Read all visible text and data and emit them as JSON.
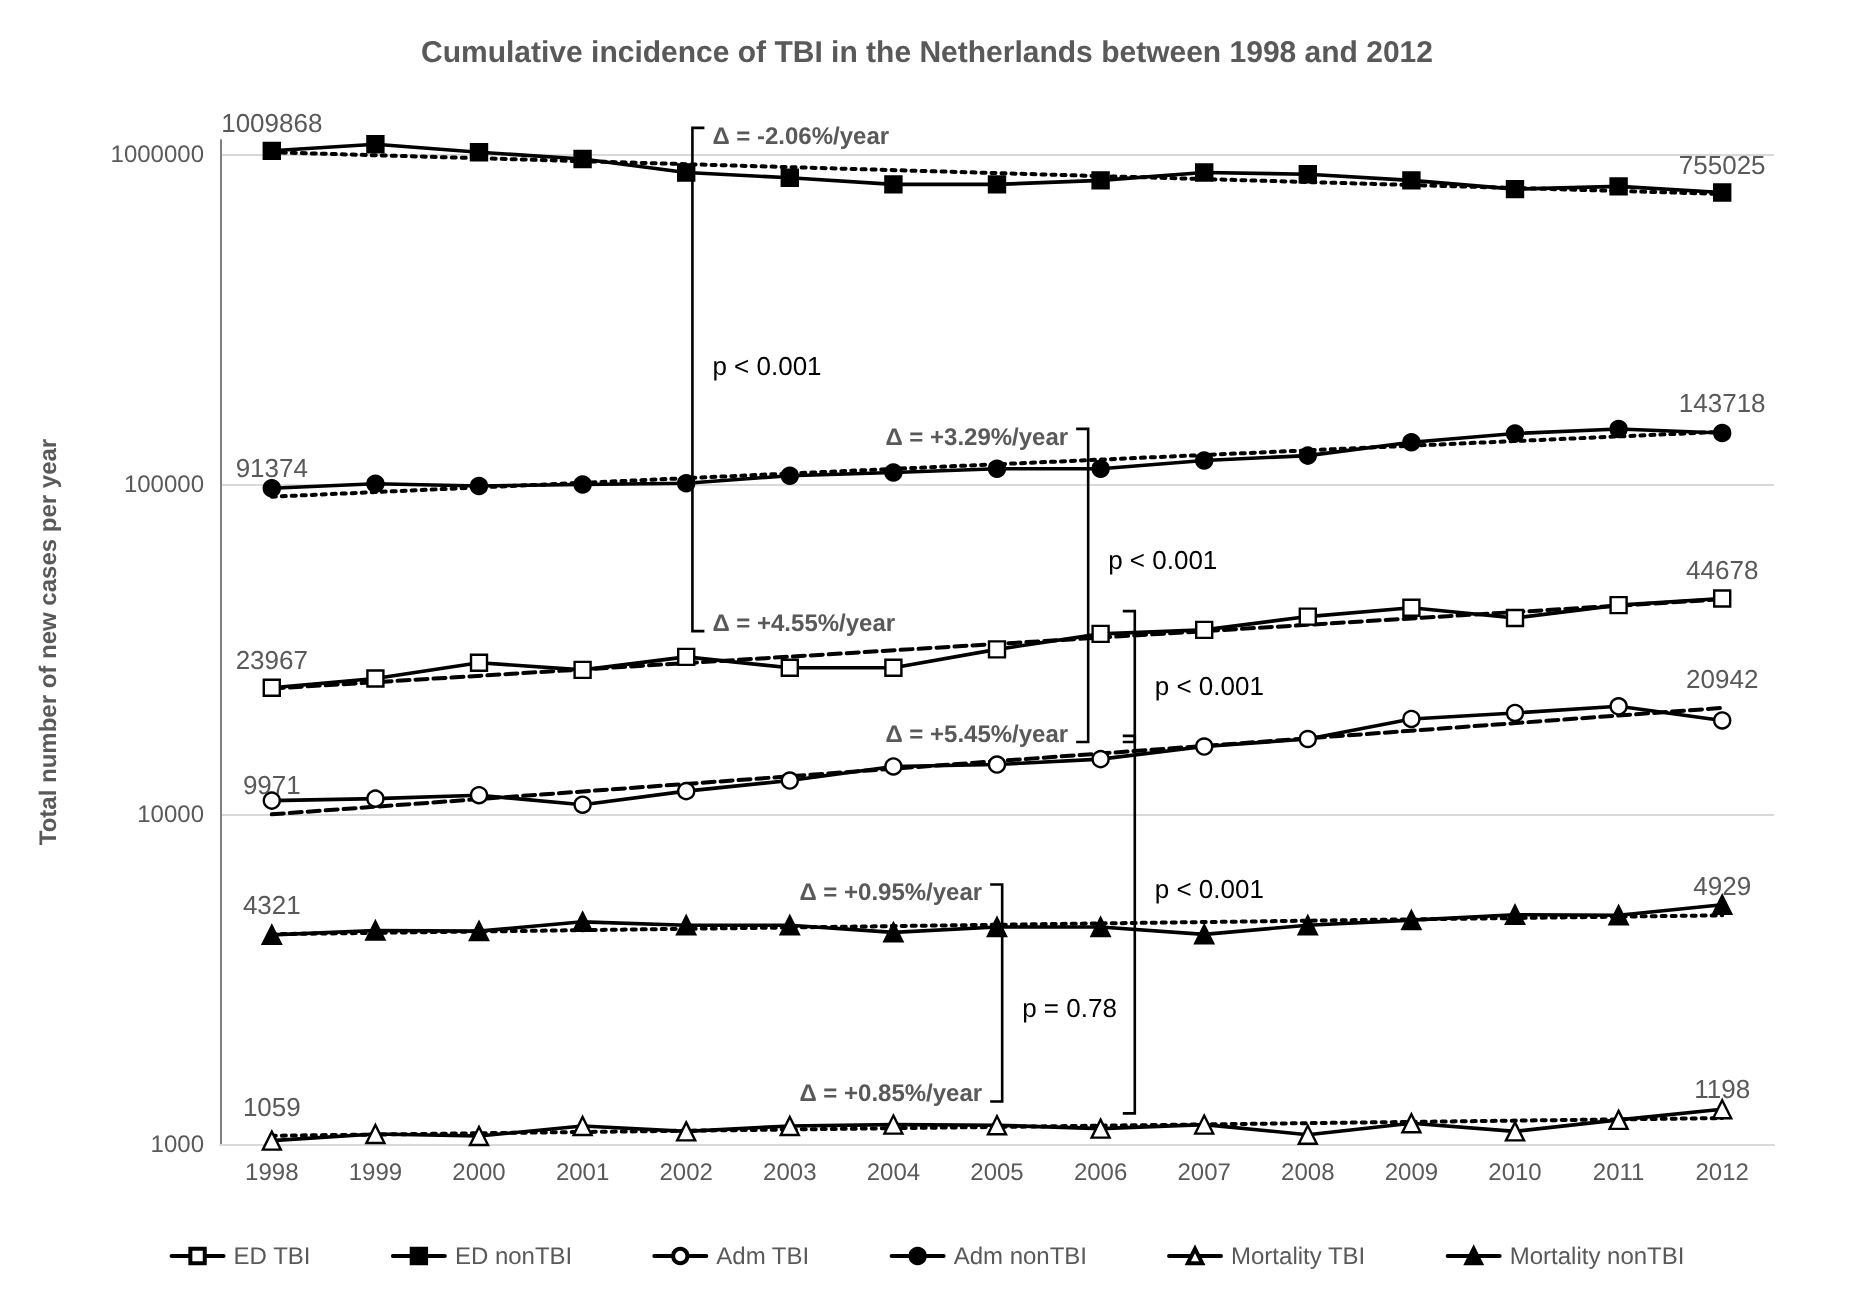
{
  "chart_data": {
    "type": "line",
    "title": "Cumulative incidence of TBI in the Netherlands between 1998 and 2012",
    "ylabel": "Total number of new cases per year",
    "categories": [
      "1998",
      "1999",
      "2000",
      "2001",
      "2002",
      "2003",
      "2004",
      "2005",
      "2006",
      "2007",
      "2008",
      "2009",
      "2010",
      "2011",
      "2012"
    ],
    "series": [
      {
        "name": "ED TBI",
        "color": "#000000",
        "marker": "square",
        "values": [
          24100,
          25700,
          28700,
          27300,
          29900,
          27700,
          27700,
          31500,
          35100,
          36100,
          39600,
          42100,
          39200,
          42900,
          44900
        ]
      },
      {
        "name": "ED nonTBI",
        "color": "#000000",
        "marker": "square",
        "values": [
          1020000,
          1068000,
          1010000,
          963000,
          877000,
          845000,
          807000,
          807000,
          830000,
          877000,
          866000,
          830000,
          781000,
          796000,
          763000
        ]
      },
      {
        "name": "Adm TBI",
        "color": "#000000",
        "marker": "circle",
        "values": [
          10970,
          11120,
          11390,
          10660,
          11720,
          12620,
          13920,
          14110,
          14650,
          16000,
          16860,
          19390,
          20220,
          21180,
          19190
        ]
      },
      {
        "name": "Adm nonTBI",
        "color": "#000000",
        "marker": "circle",
        "values": [
          96960,
          100000,
          98500,
          99500,
          100400,
          105800,
          108200,
          111000,
          111000,
          117600,
          121700,
          133600,
          142000,
          146600,
          142500
        ]
      },
      {
        "name": "Mortality TBI",
        "color": "#000000",
        "marker": "triangle",
        "values": [
          1024,
          1072,
          1057,
          1134,
          1092,
          1134,
          1145,
          1140,
          1113,
          1145,
          1067,
          1156,
          1092,
          1183,
          1274
        ]
      },
      {
        "name": "Mortality nonTBI",
        "color": "#000000",
        "marker": "triangle",
        "values": [
          4300,
          4435,
          4415,
          4710,
          4600,
          4600,
          4375,
          4545,
          4545,
          4315,
          4600,
          4765,
          4950,
          4930,
          5305
        ]
      },
      {
        "type": "line",
        "color": "#000000",
        "line_style": "dashed",
        "values": [
          23967,
          null,
          null,
          null,
          null,
          null,
          null,
          null,
          null,
          null,
          null,
          null,
          null,
          null,
          44678
        ],
        "value_labels": [
          "23967",
          null,
          null,
          null,
          null,
          null,
          null,
          null,
          null,
          null,
          null,
          null,
          null,
          null,
          "44678"
        ]
      },
      {
        "type": "line",
        "color": "#000000",
        "line_style": "dotted",
        "values": [
          1009868,
          null,
          null,
          null,
          null,
          null,
          null,
          null,
          null,
          null,
          null,
          null,
          null,
          null,
          755025
        ],
        "value_labels": [
          "1009868",
          null,
          null,
          null,
          null,
          null,
          null,
          null,
          null,
          null,
          null,
          null,
          null,
          null,
          "755025"
        ]
      },
      {
        "type": "line",
        "color": "#000000",
        "line_style": "dashed",
        "values": [
          9971,
          null,
          null,
          null,
          null,
          null,
          null,
          null,
          null,
          null,
          null,
          null,
          null,
          null,
          20942
        ],
        "value_labels": [
          "9971",
          null,
          null,
          null,
          null,
          null,
          null,
          null,
          null,
          null,
          null,
          null,
          null,
          null,
          "20942"
        ]
      },
      {
        "type": "line",
        "color": "#000000",
        "line_style": "dotted",
        "values": [
          91374,
          null,
          null,
          null,
          null,
          null,
          null,
          null,
          null,
          null,
          null,
          null,
          null,
          null,
          143718
        ],
        "value_labels": [
          "91374",
          null,
          null,
          null,
          null,
          null,
          null,
          null,
          null,
          null,
          null,
          null,
          null,
          null,
          "143718"
        ]
      },
      {
        "type": "line",
        "color": "#000000",
        "line_style": "dotted",
        "values": [
          1059,
          null,
          null,
          null,
          null,
          null,
          null,
          null,
          null,
          null,
          null,
          null,
          null,
          null,
          1198
        ],
        "value_labels": [
          "1059",
          null,
          null,
          null,
          null,
          null,
          null,
          null,
          null,
          null,
          null,
          null,
          null,
          null,
          "1198"
        ]
      },
      {
        "type": "line",
        "color": "#000000",
        "line_style": "dotted",
        "values": [
          4321,
          null,
          null,
          null,
          null,
          null,
          null,
          null,
          null,
          null,
          null,
          null,
          null,
          null,
          4929
        ],
        "value_labels": [
          "4321",
          null,
          null,
          null,
          null,
          null,
          null,
          null,
          null,
          null,
          null,
          null,
          null,
          null,
          "4929"
        ]
      }
    ],
    "annotations": [
      "Δ = -2.06%/year",
      "Δ = +4.55%/year",
      "Δ = +3.29%/year",
      "Δ = +5.45%/year",
      "Δ = +0.95%/year",
      "Δ = +0.85%/year",
      "p < 0.001",
      "p < 0.001",
      "p = 0.78",
      "p < 0.001",
      "p < 0.001"
    ],
    "log": "y",
    "ylim": [
      1000,
      1100000
    ],
    "yticks": [
      1000,
      10000,
      100000,
      1000000
    ],
    "grid": "y",
    "legend": "bottom",
    "line_style": "solid"
  }
}
